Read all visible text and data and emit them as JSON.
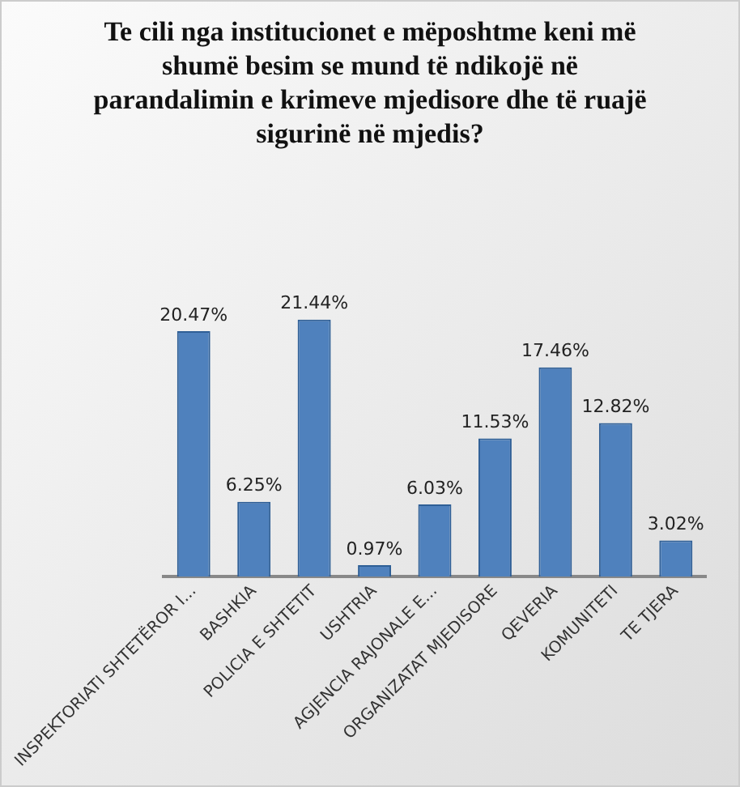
{
  "chart_data": {
    "type": "bar",
    "title": "Te cili nga institucionet e mëposhtme keni më shumë besim se mund të ndikojë në parandalimin e krimeve mjedisore dhe të ruajë sigurinë në mjedis?",
    "categories": [
      "INSPEKTORIATI SHTETËROR I...",
      "BASHKIA",
      "POLICIA E SHTETIT",
      "USHTRIA",
      "AGJENCIA RAJONALE E...",
      "ORGANIZATAT MJEDISORE",
      "QEVERIA",
      "KOMUNITETI",
      "TE TJERA"
    ],
    "values": [
      20.47,
      6.25,
      21.44,
      0.97,
      6.03,
      11.53,
      17.46,
      12.82,
      3.02
    ],
    "value_labels": [
      "20.47%",
      "6.25%",
      "21.44%",
      "0.97%",
      "6.03%",
      "11.53%",
      "17.46%",
      "12.82%",
      "3.02%"
    ],
    "color": "#4f81bd",
    "grid": false,
    "legend": false
  }
}
